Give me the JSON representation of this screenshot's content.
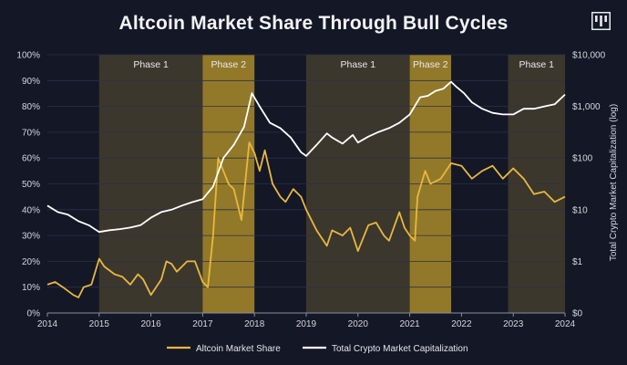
{
  "title": "Altcoin Market Share Through Bull Cycles",
  "logo_icon": "logo-icon",
  "colors": {
    "background": "#141726",
    "altcoin": "#e8b83e",
    "total": "#ffffff",
    "phase1_fill": "#4a4330",
    "phase2_fill": "#a88b2a"
  },
  "chart_data": {
    "type": "line",
    "title": "Altcoin Market Share Through Bull Cycles",
    "x_range": [
      2014,
      2024
    ],
    "x_ticks": [
      "2014",
      "2015",
      "2016",
      "2017",
      "2018",
      "2019",
      "2020",
      "2021",
      "2022",
      "2023",
      "2024"
    ],
    "left_axis": {
      "range": [
        0,
        100
      ],
      "ticks": [
        "0%",
        "10%",
        "20%",
        "30%",
        "40%",
        "50%",
        "60%",
        "70%",
        "80%",
        "90%",
        "100%"
      ]
    },
    "right_axis": {
      "label": "Total Crypto Market Capitalization (log)",
      "scale": "log",
      "ticks": [
        "$0",
        "$1",
        "$10",
        "$100",
        "$1,000",
        "$10,000"
      ]
    },
    "phases": [
      {
        "label": "Phase 1",
        "start": 2015.0,
        "end": 2017.0,
        "kind": "phase1"
      },
      {
        "label": "Phase 2",
        "start": 2017.0,
        "end": 2018.0,
        "kind": "phase2"
      },
      {
        "label": "Phase 1",
        "start": 2019.0,
        "end": 2021.0,
        "kind": "phase1"
      },
      {
        "label": "Phase 2",
        "start": 2021.0,
        "end": 2021.8,
        "kind": "phase2"
      },
      {
        "label": "Phase 1",
        "start": 2022.9,
        "end": 2024.0,
        "kind": "phase1"
      }
    ],
    "series": [
      {
        "name": "Altcoin Market Share",
        "axis": "left",
        "x": [
          2014.0,
          2014.15,
          2014.3,
          2014.5,
          2014.6,
          2014.7,
          2014.85,
          2015.0,
          2015.1,
          2015.3,
          2015.45,
          2015.6,
          2015.75,
          2015.85,
          2016.0,
          2016.1,
          2016.2,
          2016.3,
          2016.4,
          2016.5,
          2016.6,
          2016.7,
          2016.85,
          2017.0,
          2017.1,
          2017.2,
          2017.3,
          2017.4,
          2017.5,
          2017.6,
          2017.75,
          2017.9,
          2018.0,
          2018.1,
          2018.2,
          2018.35,
          2018.5,
          2018.6,
          2018.75,
          2018.9,
          2019.0,
          2019.2,
          2019.4,
          2019.5,
          2019.7,
          2019.85,
          2020.0,
          2020.2,
          2020.35,
          2020.5,
          2020.6,
          2020.8,
          2020.9,
          2021.0,
          2021.1,
          2021.15,
          2021.3,
          2021.4,
          2021.6,
          2021.8,
          2022.0,
          2022.2,
          2022.4,
          2022.6,
          2022.8,
          2023.0,
          2023.2,
          2023.4,
          2023.6,
          2023.8,
          2024.0
        ],
        "y": [
          11,
          12,
          10,
          7,
          6,
          10,
          11,
          21,
          18,
          15,
          14,
          11,
          15,
          13,
          7,
          10,
          13,
          20,
          19,
          16,
          18,
          20,
          20,
          12,
          10,
          30,
          60,
          55,
          50,
          48,
          36,
          66,
          62,
          55,
          63,
          50,
          45,
          43,
          48,
          45,
          40,
          32,
          26,
          32,
          30,
          33,
          24,
          34,
          35,
          30,
          28,
          39,
          33,
          30,
          28,
          45,
          55,
          50,
          52,
          58,
          57,
          52,
          55,
          57,
          52,
          56,
          52,
          46,
          47,
          43,
          45
        ]
      },
      {
        "name": "Total Crypto Market Capitalization",
        "axis": "right",
        "x": [
          2014.0,
          2014.2,
          2014.4,
          2014.6,
          2014.8,
          2015.0,
          2015.2,
          2015.4,
          2015.6,
          2015.8,
          2016.0,
          2016.2,
          2016.4,
          2016.6,
          2016.8,
          2017.0,
          2017.2,
          2017.4,
          2017.6,
          2017.8,
          2017.95,
          2018.1,
          2018.3,
          2018.5,
          2018.7,
          2018.9,
          2019.0,
          2019.2,
          2019.4,
          2019.5,
          2019.7,
          2019.9,
          2020.0,
          2020.2,
          2020.4,
          2020.6,
          2020.8,
          2021.0,
          2021.2,
          2021.35,
          2021.5,
          2021.65,
          2021.8,
          2021.9,
          2022.05,
          2022.2,
          2022.4,
          2022.6,
          2022.8,
          2023.0,
          2023.2,
          2023.4,
          2023.6,
          2023.8,
          2024.0
        ],
        "y": [
          12,
          9,
          8,
          6,
          5,
          3.7,
          4,
          4.2,
          4.5,
          5,
          7,
          9,
          10,
          12,
          14,
          16,
          28,
          100,
          180,
          400,
          1800,
          1000,
          480,
          380,
          250,
          130,
          110,
          180,
          300,
          250,
          190,
          280,
          200,
          260,
          320,
          380,
          480,
          700,
          1500,
          1600,
          2000,
          2200,
          3000,
          2400,
          1800,
          1200,
          900,
          750,
          700,
          700,
          900,
          900,
          1000,
          1100,
          1700
        ]
      }
    ]
  },
  "legend": [
    {
      "label": "Altcoin Market Share",
      "color": "#e8b83e"
    },
    {
      "label": "Total Crypto Market Capitalization",
      "color": "#ffffff"
    }
  ]
}
